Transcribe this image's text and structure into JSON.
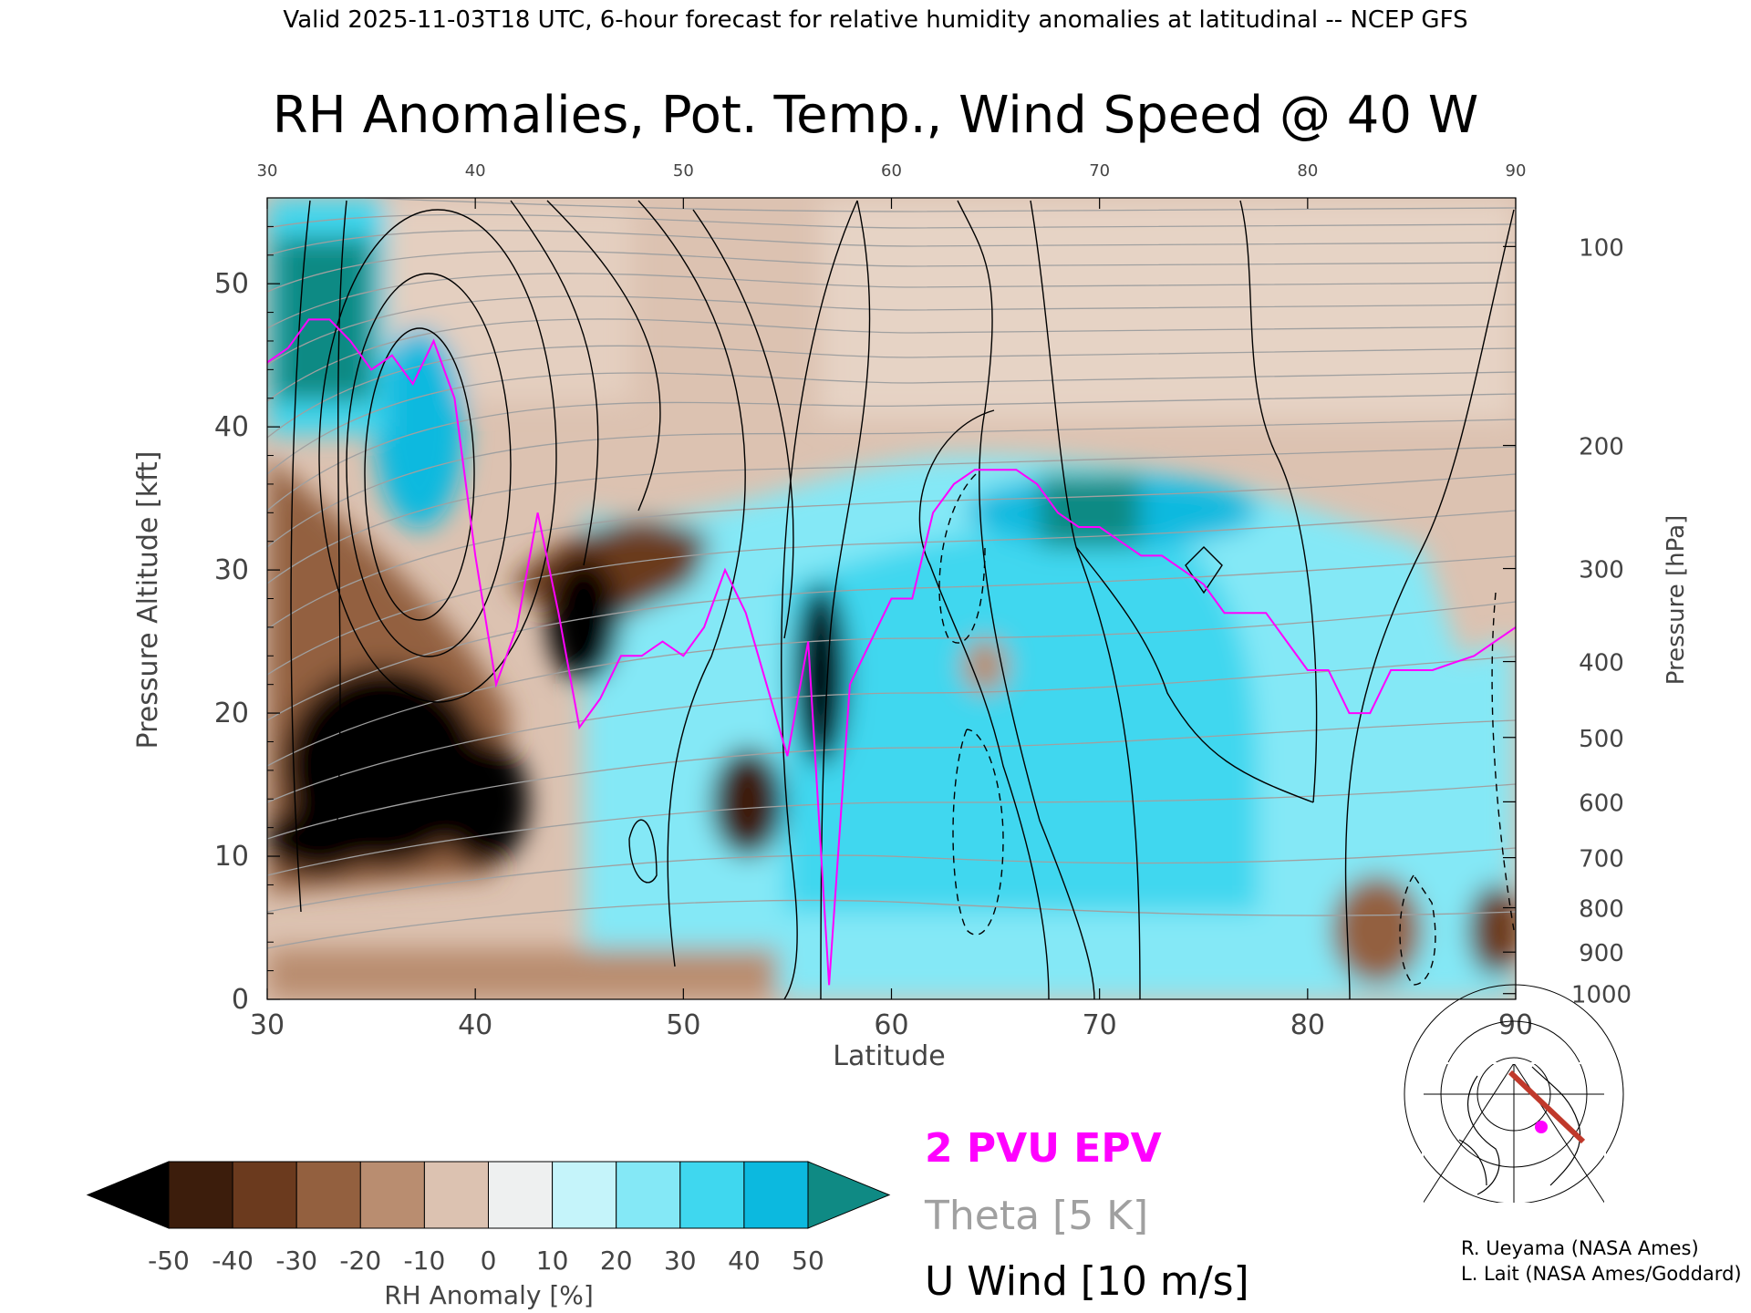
{
  "header": "Valid 2025-11-03T18 UTC, 6-hour forecast for relative humidity anomalies at latitudinal -- NCEP GFS",
  "chart_data": {
    "type": "heatmap",
    "title": "RH Anomalies, Pot. Temp., Wind Speed @ 40 W",
    "xlabel": "Latitude",
    "ylabel": "Pressure Altitude [kft]",
    "y2label": "Pressure [hPa]",
    "xlim": [
      30,
      90
    ],
    "ylim": [
      0,
      56
    ],
    "x_ticks": [
      "30",
      "40",
      "50",
      "60",
      "70",
      "80",
      "90"
    ],
    "y_ticks": [
      "0",
      "10",
      "20",
      "30",
      "40",
      "50"
    ],
    "pressure_ticks": [
      {
        "label": "100",
        "kft": 52.6
      },
      {
        "label": "200",
        "kft": 38.7
      },
      {
        "label": "300",
        "kft": 30.1
      },
      {
        "label": "400",
        "kft": 23.6
      },
      {
        "label": "500",
        "kft": 18.3
      },
      {
        "label": "600",
        "kft": 13.8
      },
      {
        "label": "700",
        "kft": 9.9
      },
      {
        "label": "800",
        "kft": 6.4
      },
      {
        "label": "900",
        "kft": 3.3
      },
      {
        "label": "1000",
        "kft": 0.4
      }
    ],
    "colorbar": {
      "label": "RH Anomaly [%]",
      "tick_labels": [
        "-50",
        "-40",
        "-30",
        "-20",
        "-10",
        "0",
        "10",
        "20",
        "30",
        "40",
        "50"
      ],
      "colors": [
        "#000000",
        "#3c1d0c",
        "#6b3a1e",
        "#93603f",
        "#b98d70",
        "#dcc2b1",
        "#eef0f0",
        "#c5f4fa",
        "#84e8f6",
        "#3fd7ef",
        "#0cb9df",
        "#0895b6",
        "#0f8a84"
      ]
    },
    "epv_2pvu": {
      "x": [
        30,
        31,
        32,
        33,
        34,
        35,
        36,
        37,
        38,
        39,
        40,
        41,
        42,
        43,
        44,
        45,
        46,
        47,
        48,
        49,
        50,
        51,
        52,
        53,
        54,
        55,
        56,
        57,
        58,
        59,
        60,
        61,
        62,
        63,
        64,
        65,
        66,
        67,
        68,
        69,
        70,
        71,
        72,
        73,
        74,
        75,
        76,
        77,
        78,
        79,
        80,
        81,
        82,
        83,
        84,
        85,
        86,
        87,
        88,
        89,
        90
      ],
      "y": [
        44.5,
        45.5,
        47.5,
        47.5,
        46,
        44,
        45,
        43,
        46,
        42,
        31,
        22,
        26,
        34,
        27,
        19,
        21,
        24,
        24,
        25,
        24,
        26,
        30,
        27,
        22,
        17,
        25,
        1,
        22,
        25,
        28,
        28,
        34,
        36,
        37,
        37,
        37,
        36,
        34,
        33,
        33,
        32,
        31,
        31,
        30,
        29,
        27,
        27,
        27,
        25,
        23,
        23,
        20,
        20,
        23,
        23,
        23,
        23.5,
        24,
        25,
        26
      ]
    },
    "hatched_regions": [
      "2 PVU EPV",
      "Theta [5 K]",
      "U Wind [10 m/s]"
    ]
  },
  "legend": {
    "epv": "2 PVU EPV",
    "theta": "Theta [5 K]",
    "wind": "U Wind [10 m/s]"
  },
  "colors": {
    "epv": "#ff00ff",
    "theta": "#a0a0a0",
    "wind": "#000000",
    "track": "#c0392b"
  },
  "credits": {
    "line1": "R. Ueyama (NASA Ames)",
    "line2": "L. Lait (NASA Ames/Goddard)"
  },
  "map_icon": "polar-map-with-section-track"
}
